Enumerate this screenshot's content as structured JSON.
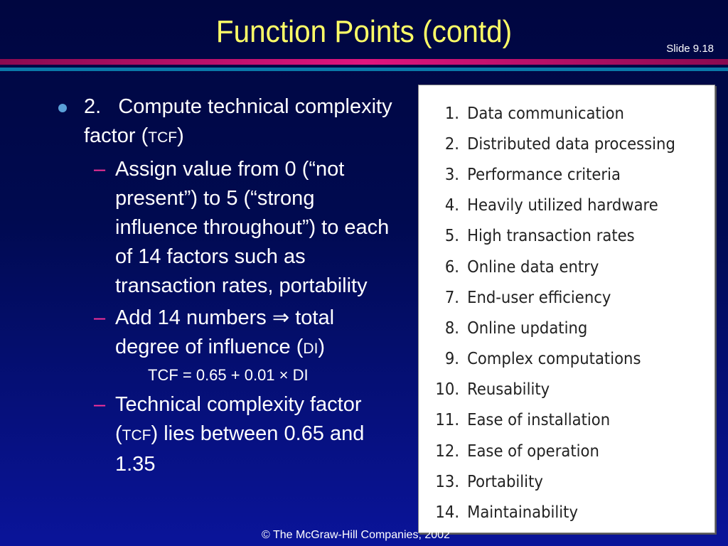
{
  "header": {
    "title": "Function Points (contd)",
    "slide_number": "Slide 9.18"
  },
  "content": {
    "point_number": "2.",
    "point_text_a": "Compute technical complexity factor (",
    "point_tcf": "TCF",
    "point_text_b": ")",
    "sub1": "Assign value from 0 (“not present”) to 5 (“strong influence throughout”) to each of 14 factors such as transaction rates, portability",
    "sub2_a": "Add 14 numbers ⇒ total degree of influence (",
    "sub2_di": "DI",
    "sub2_b": ")",
    "formula": "TCF = 0.65 + 0.01 × DI",
    "sub3_a": "Technical complexity factor (",
    "sub3_tcf": "TCF",
    "sub3_b": ") lies between 0.65 and 1.35"
  },
  "factors": [
    {
      "n": "1.",
      "label": "Data communication"
    },
    {
      "n": "2.",
      "label": "Distributed data processing"
    },
    {
      "n": "3.",
      "label": "Performance criteria"
    },
    {
      "n": "4.",
      "label": "Heavily utilized hardware"
    },
    {
      "n": "5.",
      "label": "High transaction rates"
    },
    {
      "n": "6.",
      "label": "Online data entry"
    },
    {
      "n": "7.",
      "label": "End-user efficiency"
    },
    {
      "n": "8.",
      "label": "Online updating"
    },
    {
      "n": "9.",
      "label": "Complex computations"
    },
    {
      "n": "10.",
      "label": "Reusability"
    },
    {
      "n": "11.",
      "label": "Ease of installation"
    },
    {
      "n": "12.",
      "label": "Ease of operation"
    },
    {
      "n": "13.",
      "label": "Portability"
    },
    {
      "n": "14.",
      "label": "Maintainability"
    }
  ],
  "footer": "© The McGraw-Hill Companies, 2002"
}
